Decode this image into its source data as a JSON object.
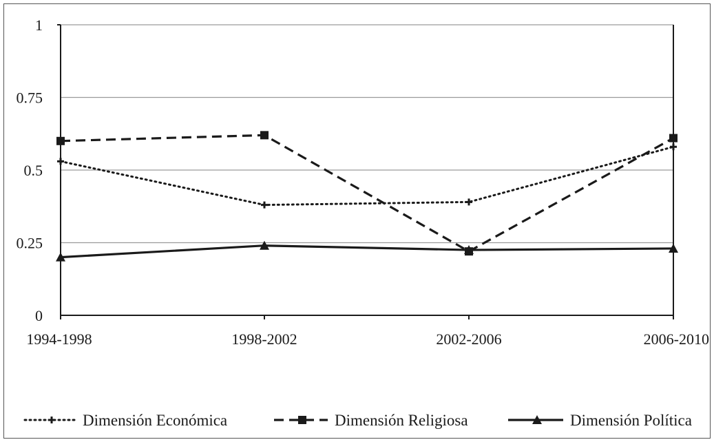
{
  "chart_data": {
    "type": "line",
    "title": "",
    "xlabel": "",
    "ylabel": "",
    "categories": [
      "1994-1998",
      "1998-2002",
      "2002-2006",
      "2006-2010"
    ],
    "ylim": [
      0,
      1
    ],
    "yticks": [
      "0",
      "0.25",
      "0.5",
      "0.75",
      "1"
    ],
    "grid": true,
    "legend_position": "bottom",
    "series": [
      {
        "name": "Dimensión Económica",
        "values": [
          0.53,
          0.38,
          0.39,
          0.58
        ],
        "line_style": "dotted",
        "marker": "cross",
        "color": "#1a1a1a"
      },
      {
        "name": "Dimensión Religiosa",
        "values": [
          0.6,
          0.62,
          0.22,
          0.61
        ],
        "line_style": "dashed",
        "marker": "square",
        "color": "#1a1a1a"
      },
      {
        "name": "Dimensión Política",
        "values": [
          0.2,
          0.24,
          0.225,
          0.23
        ],
        "line_style": "solid",
        "marker": "triangle",
        "color": "#1a1a1a"
      }
    ]
  }
}
